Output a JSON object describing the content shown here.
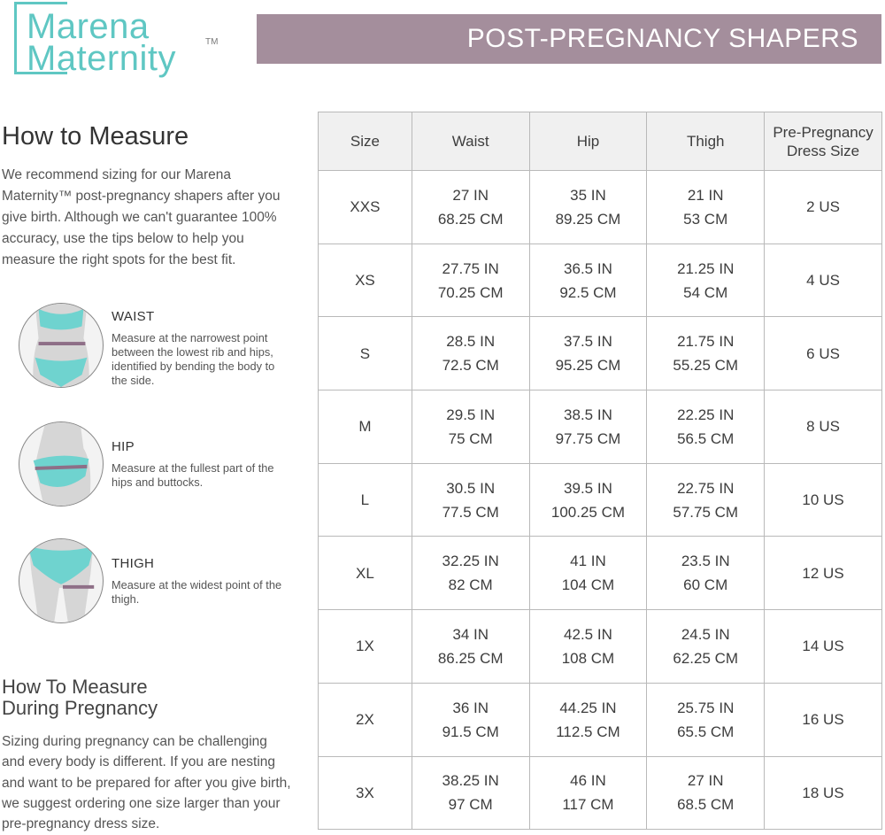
{
  "brand": {
    "line1": "Marena",
    "line2": "Maternity",
    "trademark": "TM",
    "color": "#5fc7c3"
  },
  "banner": {
    "title": "POST-PREGNANCY SHAPERS",
    "color": "#a48e9c"
  },
  "guide": {
    "heading": "How to Measure",
    "intro": "We recommend sizing for our Marena Maternity™ post-pregnancy shapers after you give birth. Although we can't guarantee 100% accuracy, use the tips below to help you measure the right spots for the best fit.",
    "items": [
      {
        "title": "WAIST",
        "desc": "Measure at the narrowest point between the lowest rib and hips, identified by bending the body to the side.",
        "icon": "waist-figure-icon"
      },
      {
        "title": "HIP",
        "desc": "Measure at the fullest part of the hips and buttocks.",
        "icon": "hip-figure-icon"
      },
      {
        "title": "THIGH",
        "desc": "Measure at the widest point of the thigh.",
        "icon": "thigh-figure-icon"
      }
    ],
    "pregnancy_heading_1": "How To Measure",
    "pregnancy_heading_2": "During Pregnancy",
    "pregnancy_text": "Sizing during pregnancy can be challenging and every body is different. If you are nesting and want to be prepared for after you give birth, we suggest ordering one size larger than your pre-pregnancy dress size."
  },
  "table": {
    "headers": [
      "Size",
      "Waist",
      "Hip",
      "Thigh",
      "Pre-Pregnancy Dress Size"
    ],
    "header_dress_line1": "Pre-Pregnancy",
    "header_dress_line2": "Dress Size",
    "rows": [
      {
        "size": "XXS",
        "waist_in": "27 IN",
        "waist_cm": "68.25 CM",
        "hip_in": "35 IN",
        "hip_cm": "89.25 CM",
        "thigh_in": "21 IN",
        "thigh_cm": "53 CM",
        "dress": "2 US"
      },
      {
        "size": "XS",
        "waist_in": "27.75 IN",
        "waist_cm": "70.25 CM",
        "hip_in": "36.5 IN",
        "hip_cm": "92.5 CM",
        "thigh_in": "21.25 IN",
        "thigh_cm": "54 CM",
        "dress": "4 US"
      },
      {
        "size": "S",
        "waist_in": "28.5 IN",
        "waist_cm": "72.5 CM",
        "hip_in": "37.5 IN",
        "hip_cm": "95.25 CM",
        "thigh_in": "21.75 IN",
        "thigh_cm": "55.25 CM",
        "dress": "6 US"
      },
      {
        "size": "M",
        "waist_in": "29.5 IN",
        "waist_cm": "75 CM",
        "hip_in": "38.5 IN",
        "hip_cm": "97.75 CM",
        "thigh_in": "22.25 IN",
        "thigh_cm": "56.5 CM",
        "dress": "8 US"
      },
      {
        "size": "L",
        "waist_in": "30.5 IN",
        "waist_cm": "77.5 CM",
        "hip_in": "39.5 IN",
        "hip_cm": "100.25 CM",
        "thigh_in": "22.75 IN",
        "thigh_cm": "57.75 CM",
        "dress": "10 US"
      },
      {
        "size": "XL",
        "waist_in": "32.25 IN",
        "waist_cm": "82 CM",
        "hip_in": "41 IN",
        "hip_cm": "104 CM",
        "thigh_in": "23.5 IN",
        "thigh_cm": "60 CM",
        "dress": "12 US"
      },
      {
        "size": "1X",
        "waist_in": "34 IN",
        "waist_cm": "86.25 CM",
        "hip_in": "42.5 IN",
        "hip_cm": "108 CM",
        "thigh_in": "24.5 IN",
        "thigh_cm": "62.25 CM",
        "dress": "14 US"
      },
      {
        "size": "2X",
        "waist_in": "36 IN",
        "waist_cm": "91.5 CM",
        "hip_in": "44.25 IN",
        "hip_cm": "112.5 CM",
        "thigh_in": "25.75 IN",
        "thigh_cm": "65.5 CM",
        "dress": "16 US"
      },
      {
        "size": "3X",
        "waist_in": "38.25 IN",
        "waist_cm": "97 CM",
        "hip_in": "46 IN",
        "hip_cm": "117 CM",
        "thigh_in": "27 IN",
        "thigh_cm": "68.5 CM",
        "dress": "18 US"
      }
    ]
  }
}
